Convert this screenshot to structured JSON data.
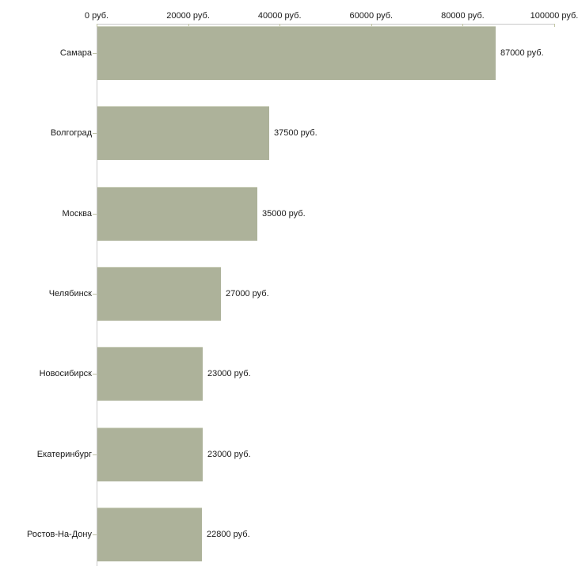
{
  "chart_data": {
    "type": "bar",
    "orientation": "horizontal",
    "title": "",
    "xlabel": "",
    "ylabel": "",
    "grid": false,
    "legend": "none",
    "categories": [
      "Самара",
      "Волгоград",
      "Москва",
      "Челябинск",
      "Новосибирск",
      "Екатеринбург",
      "Ростов-На-Дону"
    ],
    "values": [
      87000,
      37500,
      35000,
      27000,
      23000,
      23000,
      22800
    ],
    "value_labels": [
      "87000 руб.",
      "37500 руб.",
      "35000 руб.",
      "27000 руб.",
      "23000 руб.",
      "23000 руб.",
      "22800 руб."
    ],
    "x_ticks": [
      0,
      20000,
      40000,
      60000,
      80000,
      100000
    ],
    "x_tick_labels": [
      "0 руб.",
      "20000 руб.",
      "40000 руб.",
      "60000 руб.",
      "80000 руб.",
      "100000 руб."
    ],
    "xlim": [
      0,
      100000
    ],
    "colors": {
      "bar_fill": "#adb29a",
      "bar_top_highlight": "#ccd0bc",
      "axis_line": "#c9c9c9",
      "x_tick_mark": "#c2c6a3",
      "category_tick_mark": "#bfc3a8",
      "text": "#1a1a1a",
      "background": "#ffffff"
    }
  }
}
